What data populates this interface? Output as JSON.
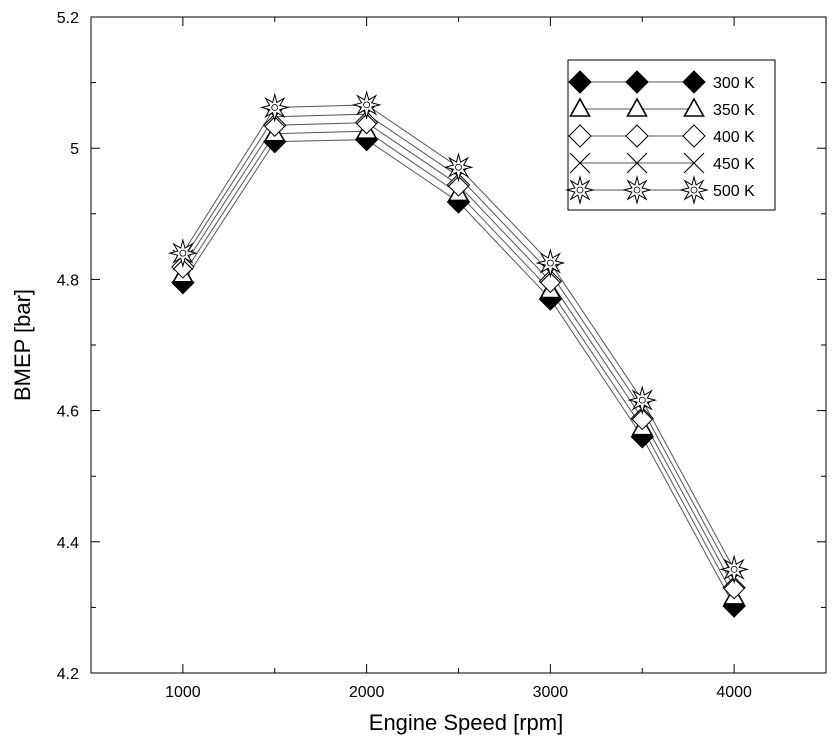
{
  "chart_data": {
    "type": "line",
    "title": "",
    "xlabel": "Engine Speed [rpm]",
    "ylabel": "BMEP [bar]",
    "xlim": [
      500,
      4500
    ],
    "ylim": [
      4.2,
      5.2
    ],
    "x_ticks": [
      1000,
      2000,
      3000,
      4000
    ],
    "y_ticks": [
      "4.2",
      "4.4",
      "4.6",
      "4.8",
      "5",
      "5.2"
    ],
    "grid": false,
    "legend_position": "top-right",
    "x": [
      1000,
      1500,
      2000,
      2500,
      3000,
      3500,
      4000
    ],
    "series": [
      {
        "name": "300 K",
        "marker": "filled-diamond",
        "values": [
          4.795,
          5.01,
          5.013,
          4.918,
          4.77,
          4.56,
          4.302
        ]
      },
      {
        "name": "350 K",
        "marker": "open-triangle",
        "values": [
          4.807,
          5.022,
          5.026,
          4.931,
          4.783,
          4.574,
          4.316
        ]
      },
      {
        "name": "400 K",
        "marker": "open-diamond",
        "values": [
          4.819,
          5.035,
          5.039,
          4.944,
          4.797,
          4.588,
          4.33
        ]
      },
      {
        "name": "450 K",
        "marker": "x",
        "values": [
          4.83,
          5.048,
          5.052,
          4.957,
          4.81,
          4.602,
          4.344
        ]
      },
      {
        "name": "500 K",
        "marker": "star",
        "values": [
          4.84,
          5.062,
          5.066,
          4.971,
          4.825,
          4.616,
          4.358
        ]
      }
    ]
  }
}
